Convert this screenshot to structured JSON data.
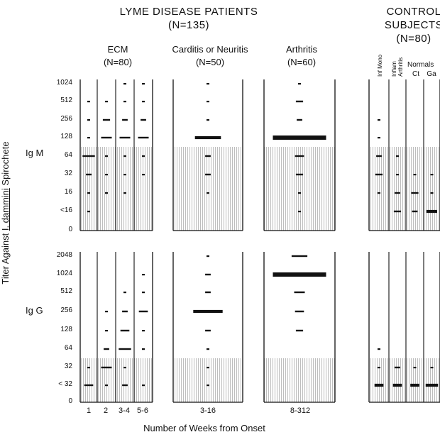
{
  "chart_data": {
    "type": "scatter",
    "title": "LYME DISEASE PATIENTS",
    "title_n": "(N=135)",
    "control_title": [
      "CONTROL",
      "SUBJECTS"
    ],
    "control_n": "(N=80)",
    "ylabel_parts": [
      "Titer Against ",
      "I. dammini",
      " Spirochete"
    ],
    "xlabel": "Number of Weeks from Onset",
    "groups": [
      {
        "label": "ECM",
        "n": "(N=80)"
      },
      {
        "label": "Carditis or Neuritis",
        "n": "(N=50)"
      },
      {
        "label": "Arthritis",
        "n": "(N=60)"
      }
    ],
    "control_subgroups": [
      "Inf Mono",
      "Inflam Arthritis",
      "Normals",
      "Ct",
      "Ga"
    ],
    "x_labels": [
      "1",
      "2",
      "3-4",
      "5-6",
      "3-16",
      "8-312"
    ],
    "panels": [
      {
        "label": "Ig M",
        "ticks": [
          "1024",
          "512",
          "256",
          "128",
          "64",
          "32",
          "16",
          "<16",
          "0"
        ],
        "shaded_below": "128",
        "series": [
          {
            "group": "1",
            "values": [
              {
                "titer": "512",
                "n": 1
              },
              {
                "titer": "256",
                "n": 1
              },
              {
                "titer": "128",
                "n": 1
              },
              {
                "titer": "64",
                "n": 6
              },
              {
                "titer": "32",
                "n": 2
              },
              {
                "titer": "16",
                "n": 1
              },
              {
                "titer": "<16",
                "n": 1
              }
            ]
          },
          {
            "group": "2",
            "values": [
              {
                "titer": "512",
                "n": 1
              },
              {
                "titer": "256",
                "n": 3
              },
              {
                "titer": "128",
                "n": 5
              },
              {
                "titer": "64",
                "n": 1
              },
              {
                "titer": "32",
                "n": 1
              },
              {
                "titer": "16",
                "n": 1
              }
            ]
          },
          {
            "group": "3-4",
            "values": [
              {
                "titer": "1024",
                "n": 1
              },
              {
                "titer": "512",
                "n": 1
              },
              {
                "titer": "256",
                "n": 2
              },
              {
                "titer": "128",
                "n": 5
              },
              {
                "titer": "64",
                "n": 1
              },
              {
                "titer": "32",
                "n": 1
              },
              {
                "titer": "16",
                "n": 1
              }
            ]
          },
          {
            "group": "5-6",
            "values": [
              {
                "titer": "1024",
                "n": 1
              },
              {
                "titer": "512",
                "n": 1
              },
              {
                "titer": "256",
                "n": 2
              },
              {
                "titer": "128",
                "n": 5
              },
              {
                "titer": "64",
                "n": 1
              },
              {
                "titer": "32",
                "n": 1
              }
            ]
          },
          {
            "group": "3-16",
            "values": [
              {
                "titer": "1024",
                "n": 1
              },
              {
                "titer": "512",
                "n": 1
              },
              {
                "titer": "256",
                "n": 1
              },
              {
                "titer": "128",
                "n": 14
              },
              {
                "titer": "64",
                "n": 2
              },
              {
                "titer": "32",
                "n": 2
              },
              {
                "titer": "16",
                "n": 1
              }
            ]
          },
          {
            "group": "8-312",
            "values": [
              {
                "titer": "1024",
                "n": 1
              },
              {
                "titer": "512",
                "n": 3
              },
              {
                "titer": "256",
                "n": 2
              },
              {
                "titer": "128",
                "n": 30
              },
              {
                "titer": "64",
                "n": 4
              },
              {
                "titer": "32",
                "n": 3
              },
              {
                "titer": "16",
                "n": 1
              },
              {
                "titer": "<16",
                "n": 1
              }
            ]
          },
          {
            "group": "Inf Mono",
            "values": [
              {
                "titer": "256",
                "n": 1
              },
              {
                "titer": "128",
                "n": 1
              },
              {
                "titer": "64",
                "n": 2
              },
              {
                "titer": "32",
                "n": 3
              },
              {
                "titer": "16",
                "n": 1
              }
            ]
          },
          {
            "group": "Inflam Arthritis",
            "values": [
              {
                "titer": "64",
                "n": 1
              },
              {
                "titer": "32",
                "n": 1
              },
              {
                "titer": "16",
                "n": 2
              },
              {
                "titer": "<16",
                "n": 3
              }
            ]
          },
          {
            "group": "Ct",
            "values": [
              {
                "titer": "32",
                "n": 1
              },
              {
                "titer": "16",
                "n": 3
              },
              {
                "titer": "<16",
                "n": 2
              }
            ]
          },
          {
            "group": "Ga",
            "values": [
              {
                "titer": "32",
                "n": 1
              },
              {
                "titer": "16",
                "n": 1
              },
              {
                "titer": "<16",
                "n": 5
              }
            ]
          }
        ]
      },
      {
        "label": "Ig G",
        "ticks": [
          "2048",
          "1024",
          "512",
          "256",
          "128",
          "64",
          "32",
          "< 32",
          "0"
        ],
        "shaded_below": "64",
        "series": [
          {
            "group": "1",
            "values": [
              {
                "titer": "32",
                "n": 1
              },
              {
                "titer": "< 32",
                "n": 4
              }
            ]
          },
          {
            "group": "2",
            "values": [
              {
                "titer": "256",
                "n": 1
              },
              {
                "titer": "128",
                "n": 1
              },
              {
                "titer": "64",
                "n": 2
              },
              {
                "titer": "32",
                "n": 5
              },
              {
                "titer": "< 32",
                "n": 1
              }
            ]
          },
          {
            "group": "3-4",
            "values": [
              {
                "titer": "512",
                "n": 1
              },
              {
                "titer": "256",
                "n": 2
              },
              {
                "titer": "128",
                "n": 4
              },
              {
                "titer": "64",
                "n": 6
              },
              {
                "titer": "32",
                "n": 1
              },
              {
                "titer": "< 32",
                "n": 2
              }
            ]
          },
          {
            "group": "5-6",
            "values": [
              {
                "titer": "1024",
                "n": 1
              },
              {
                "titer": "512",
                "n": 1
              },
              {
                "titer": "256",
                "n": 4
              },
              {
                "titer": "128",
                "n": 1
              },
              {
                "titer": "64",
                "n": 1
              },
              {
                "titer": "< 32",
                "n": 1
              }
            ]
          },
          {
            "group": "3-16",
            "values": [
              {
                "titer": "2048",
                "n": 1
              },
              {
                "titer": "1024",
                "n": 2
              },
              {
                "titer": "512",
                "n": 2
              },
              {
                "titer": "256",
                "n": 16
              },
              {
                "titer": "128",
                "n": 2
              },
              {
                "titer": "64",
                "n": 1
              },
              {
                "titer": "32",
                "n": 1
              },
              {
                "titer": "< 32",
                "n": 1
              }
            ]
          },
          {
            "group": "8-312",
            "values": [
              {
                "titer": "2048",
                "n": 8
              },
              {
                "titer": "1024",
                "n": 30
              },
              {
                "titer": "512",
                "n": 5
              },
              {
                "titer": "256",
                "n": 4
              },
              {
                "titer": "128",
                "n": 3
              }
            ]
          },
          {
            "group": "Inf Mono",
            "values": [
              {
                "titer": "64",
                "n": 1
              },
              {
                "titer": "32",
                "n": 1
              },
              {
                "titer": "< 32",
                "n": 4
              }
            ]
          },
          {
            "group": "Inflam Arthritis",
            "values": [
              {
                "titer": "32",
                "n": 2
              },
              {
                "titer": "< 32",
                "n": 4
              }
            ]
          },
          {
            "group": "Ct",
            "values": [
              {
                "titer": "32",
                "n": 1
              },
              {
                "titer": "< 32",
                "n": 4
              }
            ]
          },
          {
            "group": "Ga",
            "values": [
              {
                "titer": "32",
                "n": 1
              },
              {
                "titer": "< 32",
                "n": 6
              }
            ]
          }
        ]
      }
    ]
  }
}
